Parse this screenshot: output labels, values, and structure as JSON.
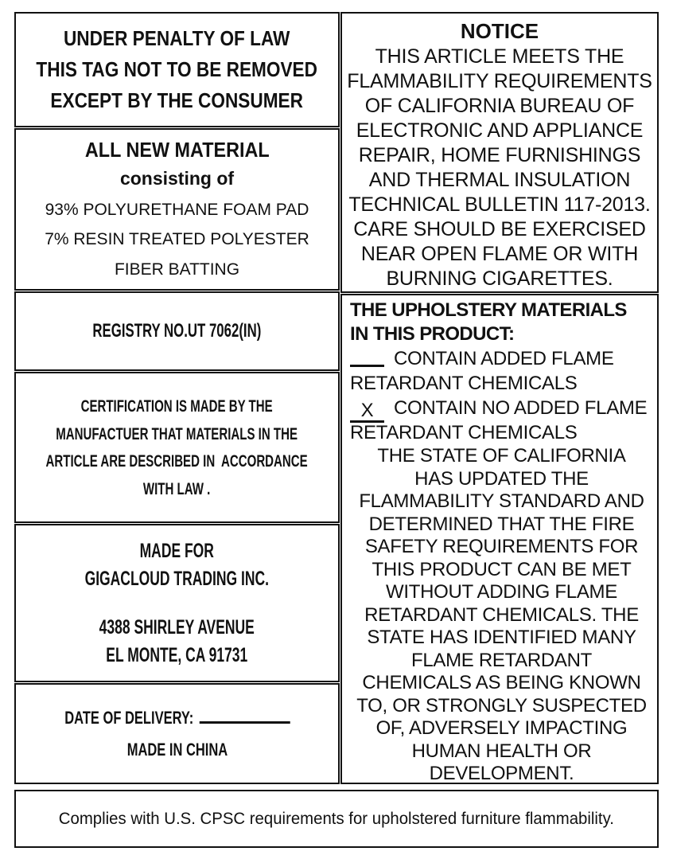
{
  "colors": {
    "text": "#111111",
    "background": "#ffffff",
    "border": "#111111"
  },
  "left": {
    "penalty_lines": [
      "UNDER PENALTY OF LAW",
      "THIS TAG NOT TO BE REMOVED",
      "EXCEPT BY THE CONSUMER"
    ],
    "material": {
      "title": "ALL NEW MATERIAL",
      "subtitle": "consisting of",
      "contents": [
        "93% POLYURETHANE FOAM PAD",
        "7% RESIN TREATED POLYESTER",
        "FIBER BATTING"
      ]
    },
    "registry_no": "REGISTRY NO.UT 7062(IN)",
    "certification_lines": [
      "CERTIFICATION IS MADE BY THE",
      "MANUFACTUER THAT MATERIALS IN THE",
      "ARTICLE ARE DESCRIBED IN  ACCORDANCE",
      "WITH LAW ."
    ],
    "made_for": {
      "heading": "MADE FOR",
      "company": "GIGACLOUD TRADING INC.",
      "address_lines": [
        "4388 SHIRLEY AVENUE",
        "EL MONTE, CA 91731"
      ]
    },
    "delivery": {
      "date_label": "DATE OF DELIVERY:",
      "origin": "MADE IN CHINA"
    }
  },
  "right": {
    "notice": {
      "title": "NOTICE",
      "lines": [
        "THIS ARTICLE MEETS THE",
        "FLAMMABILITY REQUIREMENTS",
        "OF CALIFORNIA BUREAU OF",
        "ELECTRONIC AND APPLIANCE",
        "REPAIR, HOME FURNISHINGS",
        "AND THERMAL INSULATION",
        "TECHNICAL BULLETIN 117-2013.",
        "CARE SHOULD BE EXERCISED",
        "NEAR OPEN FLAME OR WITH",
        "BURNING CIGARETTES."
      ]
    },
    "upholstery": {
      "heading_lines": [
        "THE UPHOLSTERY MATERIALS",
        "IN THIS PRODUCT:"
      ],
      "options": [
        {
          "mark": "",
          "lines": [
            "CONTAIN ADDED FLAME",
            "RETARDANT CHEMICALS"
          ]
        },
        {
          "mark": "X",
          "lines": [
            "CONTAIN NO ADDED FLAME",
            "RETARDANT CHEMICALS"
          ]
        }
      ],
      "statement_lines": [
        "THE STATE OF CALIFORNIA",
        "HAS UPDATED THE",
        "FLAMMABILITY STANDARD AND",
        "DETERMINED THAT THE FIRE",
        "SAFETY REQUIREMENTS FOR",
        "THIS PRODUCT CAN BE MET",
        "WITHOUT ADDING FLAME",
        "RETARDANT CHEMICALS. THE",
        "STATE HAS IDENTIFIED MANY",
        "FLAME RETARDANT",
        "CHEMICALS AS BEING KNOWN",
        "TO, OR STRONGLY SUSPECTED",
        "OF, ADVERSELY IMPACTING",
        "HUMAN HEALTH OR",
        "DEVELOPMENT."
      ]
    }
  },
  "footer": {
    "compliance": "Complies with U.S. CPSC requirements for upholstered furniture flammability."
  }
}
